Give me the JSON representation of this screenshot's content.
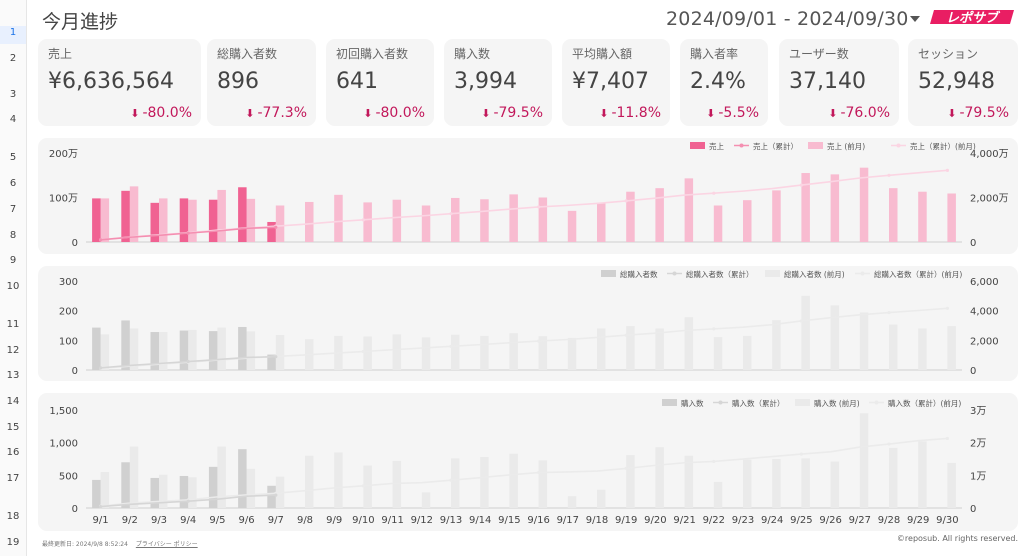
{
  "header": {
    "title": "今月進捗",
    "date_range": "2024/09/01 - 2024/09/30",
    "logo_text": "レポサブ"
  },
  "gutter_rows": [
    "1",
    "2",
    "3",
    "4",
    "5",
    "6",
    "7",
    "8",
    "9",
    "10",
    "11",
    "12",
    "13",
    "14",
    "15",
    "16",
    "17",
    "18",
    "19"
  ],
  "kpis": [
    {
      "label": "売上",
      "value": "¥6,636,564",
      "delta": "-80.0%"
    },
    {
      "label": "総購入者数",
      "value": "896",
      "delta": "-77.3%"
    },
    {
      "label": "初回購入者数",
      "value": "641",
      "delta": "-80.0%"
    },
    {
      "label": "購入数",
      "value": "3,994",
      "delta": "-79.5%"
    },
    {
      "label": "平均購入額",
      "value": "¥7,407",
      "delta": "-11.8%"
    },
    {
      "label": "購入者率",
      "value": "2.4%",
      "delta": "-5.5%"
    },
    {
      "label": "ユーザー数",
      "value": "37,140",
      "delta": "-76.0%"
    },
    {
      "label": "セッション",
      "value": "52,948",
      "delta": "-79.5%"
    }
  ],
  "colors": {
    "pink_current": "#f06292",
    "pink_prev": "#f8bbd0",
    "pink_line": "#f48fb1",
    "pink_line_prev": "#fbd5e3",
    "gray_current": "#d0d0d0",
    "gray_prev": "#eaeaea",
    "gray_line": "#d6d6d6",
    "gray_line_prev": "#ebebeb",
    "delta_down": "#c2185b"
  },
  "footer": {
    "updated": "最終更新日: 2024/9/8 8:52:24",
    "privacy": "プライバシー ポリシー",
    "copyright": "©reposub. All rights reserved."
  },
  "chart_data": [
    {
      "type": "bar",
      "title": "",
      "categories": [
        "9/1",
        "9/2",
        "9/3",
        "9/4",
        "9/5",
        "9/6",
        "9/7",
        "9/8",
        "9/9",
        "9/10",
        "9/11",
        "9/12",
        "9/13",
        "9/14",
        "9/15",
        "9/16",
        "9/17",
        "9/18",
        "9/19",
        "9/20",
        "9/21",
        "9/22",
        "9/23",
        "9/24",
        "9/25",
        "9/26",
        "9/27",
        "9/28",
        "9/29",
        "9/30"
      ],
      "y_ticks": [
        "0",
        "100万",
        "200万"
      ],
      "y2_ticks": [
        "0",
        "2,000万",
        "4,000万"
      ],
      "ylim": [
        0,
        2000000
      ],
      "y2lim": [
        0,
        40000000
      ],
      "legend_position": "top-right",
      "series": [
        {
          "name": "売上",
          "kind": "bar",
          "values": [
            980000,
            1150000,
            880000,
            980000,
            950000,
            1230000,
            450000,
            null,
            null,
            null,
            null,
            null,
            null,
            null,
            null,
            null,
            null,
            null,
            null,
            null,
            null,
            null,
            null,
            null,
            null,
            null,
            null,
            null,
            null,
            null
          ]
        },
        {
          "name": "売上（累計）",
          "kind": "line",
          "axis": "right",
          "values": [
            980000,
            2130000,
            3010000,
            3990000,
            4940000,
            6170000,
            6620000,
            null,
            null,
            null,
            null,
            null,
            null,
            null,
            null,
            null,
            null,
            null,
            null,
            null,
            null,
            null,
            null,
            null,
            null,
            null,
            null,
            null,
            null,
            null
          ]
        },
        {
          "name": "売上 (前月)",
          "kind": "bar",
          "values": [
            980000,
            1250000,
            980000,
            950000,
            1170000,
            970000,
            820000,
            900000,
            1060000,
            890000,
            950000,
            820000,
            990000,
            960000,
            1070000,
            1000000,
            700000,
            880000,
            1130000,
            1210000,
            1430000,
            820000,
            940000,
            1160000,
            1550000,
            1520000,
            1670000,
            1210000,
            1130000,
            1090000
          ]
        },
        {
          "name": "売上（累計）(前月)",
          "kind": "line",
          "axis": "right",
          "values": [
            980000,
            2230000,
            3210000,
            4160000,
            5330000,
            6300000,
            7120000,
            8020000,
            9080000,
            9970000,
            10920000,
            11740000,
            12730000,
            13690000,
            14760000,
            15760000,
            16460000,
            17340000,
            18470000,
            19680000,
            21110000,
            21930000,
            22870000,
            24030000,
            25580000,
            27100000,
            28770000,
            29980000,
            31110000,
            32200000
          ]
        }
      ]
    },
    {
      "type": "bar",
      "title": "",
      "categories": [
        "9/1",
        "9/2",
        "9/3",
        "9/4",
        "9/5",
        "9/6",
        "9/7",
        "9/8",
        "9/9",
        "9/10",
        "9/11",
        "9/12",
        "9/13",
        "9/14",
        "9/15",
        "9/16",
        "9/17",
        "9/18",
        "9/19",
        "9/20",
        "9/21",
        "9/22",
        "9/23",
        "9/24",
        "9/25",
        "9/26",
        "9/27",
        "9/28",
        "9/29",
        "9/30"
      ],
      "y_ticks": [
        "0",
        "100",
        "200",
        "300"
      ],
      "y2_ticks": [
        "0",
        "2,000",
        "4,000",
        "6,000"
      ],
      "ylim": [
        0,
        300
      ],
      "y2lim": [
        0,
        6000
      ],
      "legend_position": "top-right",
      "series": [
        {
          "name": "総購入者数",
          "kind": "bar",
          "values": [
            143,
            167,
            128,
            133,
            131,
            145,
            52,
            null,
            null,
            null,
            null,
            null,
            null,
            null,
            null,
            null,
            null,
            null,
            null,
            null,
            null,
            null,
            null,
            null,
            null,
            null,
            null,
            null,
            null,
            null
          ]
        },
        {
          "name": "総購入者数（累計）",
          "kind": "line",
          "axis": "right",
          "values": [
            143,
            310,
            438,
            571,
            702,
            847,
            899,
            null,
            null,
            null,
            null,
            null,
            null,
            null,
            null,
            null,
            null,
            null,
            null,
            null,
            null,
            null,
            null,
            null,
            null,
            null,
            null,
            null,
            null,
            null
          ]
        },
        {
          "name": "総購入者数 (前月)",
          "kind": "bar",
          "values": [
            120,
            140,
            128,
            135,
            143,
            130,
            118,
            104,
            115,
            113,
            120,
            110,
            119,
            115,
            124,
            114,
            108,
            140,
            148,
            140,
            178,
            111,
            115,
            168,
            250,
            218,
            194,
            153,
            140,
            148
          ]
        },
        {
          "name": "総購入者数（累計）(前月)",
          "kind": "line",
          "axis": "right",
          "values": [
            120,
            260,
            388,
            523,
            666,
            796,
            914,
            1018,
            1133,
            1246,
            1366,
            1476,
            1595,
            1710,
            1834,
            1948,
            2056,
            2196,
            2344,
            2484,
            2662,
            2773,
            2888,
            3056,
            3306,
            3524,
            3718,
            3871,
            4011,
            4159
          ]
        }
      ]
    },
    {
      "type": "bar",
      "title": "",
      "categories": [
        "9/1",
        "9/2",
        "9/3",
        "9/4",
        "9/5",
        "9/6",
        "9/7",
        "9/8",
        "9/9",
        "9/10",
        "9/11",
        "9/12",
        "9/13",
        "9/14",
        "9/15",
        "9/16",
        "9/17",
        "9/18",
        "9/19",
        "9/20",
        "9/21",
        "9/22",
        "9/23",
        "9/24",
        "9/25",
        "9/26",
        "9/27",
        "9/28",
        "9/29",
        "9/30"
      ],
      "y_ticks": [
        "0",
        "500",
        "1,000",
        "1,500"
      ],
      "y2_ticks": [
        "0",
        "1万",
        "2万",
        "3万"
      ],
      "ylim": [
        0,
        1500
      ],
      "y2lim": [
        0,
        30000
      ],
      "legend_position": "top-right",
      "series": [
        {
          "name": "購入数",
          "kind": "bar",
          "values": [
            430,
            700,
            460,
            490,
            630,
            900,
            340,
            null,
            null,
            null,
            null,
            null,
            null,
            null,
            null,
            null,
            null,
            null,
            null,
            null,
            null,
            null,
            null,
            null,
            null,
            null,
            null,
            null,
            null,
            null
          ]
        },
        {
          "name": "購入数（累計）",
          "kind": "line",
          "axis": "right",
          "values": [
            430,
            1130,
            1590,
            2080,
            2710,
            3610,
            3950,
            null,
            null,
            null,
            null,
            null,
            null,
            null,
            null,
            null,
            null,
            null,
            null,
            null,
            null,
            null,
            null,
            null,
            null,
            null,
            null,
            null,
            null,
            null
          ]
        },
        {
          "name": "購入数 (前月)",
          "kind": "bar",
          "values": [
            550,
            940,
            510,
            470,
            940,
            600,
            480,
            800,
            850,
            650,
            720,
            240,
            760,
            780,
            830,
            730,
            180,
            280,
            810,
            930,
            800,
            400,
            740,
            750,
            760,
            710,
            1450,
            920,
            1020,
            690
          ]
        },
        {
          "name": "購入数（累計）(前月)",
          "kind": "line",
          "axis": "right",
          "values": [
            550,
            1490,
            2000,
            2470,
            3410,
            4010,
            4490,
            5290,
            6140,
            6790,
            7510,
            7750,
            8510,
            9290,
            10120,
            10850,
            11030,
            11310,
            12120,
            13050,
            13850,
            14250,
            14990,
            15740,
            16500,
            17210,
            18660,
            19580,
            20600,
            21290
          ]
        }
      ]
    }
  ]
}
